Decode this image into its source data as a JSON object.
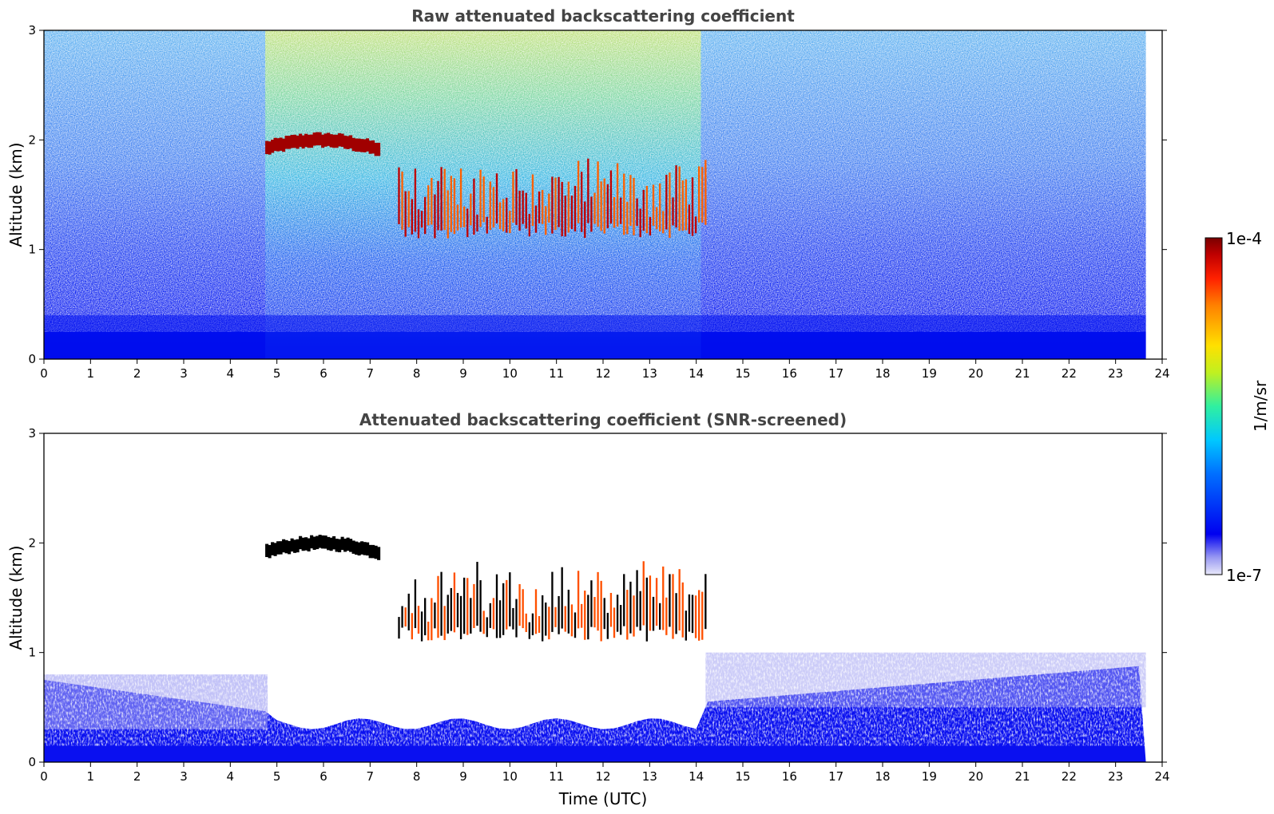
{
  "chart_data": [
    {
      "type": "heatmap",
      "title": "Raw attenuated backscattering coefficient",
      "xlabel": "",
      "ylabel": "Altitude (km)",
      "xlim": [
        0,
        24
      ],
      "ylim": [
        0,
        3
      ],
      "x_ticks": [
        "0",
        "1",
        "2",
        "3",
        "4",
        "5",
        "6",
        "7",
        "8",
        "9",
        "10",
        "11",
        "12",
        "13",
        "14",
        "15",
        "16",
        "17",
        "18",
        "19",
        "20",
        "21",
        "22",
        "23",
        "24"
      ],
      "y_ticks": [
        "0",
        "1",
        "2",
        "3"
      ],
      "data_end_time": 23.65,
      "features": [
        {
          "kind": "cloud_layer",
          "t_start": 4.75,
          "t_end": 7.2,
          "alt_km": 1.9
        },
        {
          "kind": "cloud_field",
          "t_start": 7.6,
          "t_end": 14.2,
          "alt_km": [
            1.1,
            1.8
          ]
        },
        {
          "kind": "elevated_noise",
          "t_start": 4.75,
          "t_end": 14.1
        },
        {
          "kind": "boundary_layer",
          "t_start": 0,
          "t_end": 23.65,
          "alt_km": [
            0,
            0.4
          ]
        }
      ]
    },
    {
      "type": "heatmap",
      "title": "Attenuated backscattering coefficient (SNR-screened)",
      "xlabel": "Time (UTC)",
      "ylabel": "Altitude (km)",
      "xlim": [
        0,
        24
      ],
      "ylim": [
        0,
        3
      ],
      "x_ticks": [
        "0",
        "1",
        "2",
        "3",
        "4",
        "5",
        "6",
        "7",
        "8",
        "9",
        "10",
        "11",
        "12",
        "13",
        "14",
        "15",
        "16",
        "17",
        "18",
        "19",
        "20",
        "21",
        "22",
        "23",
        "24"
      ],
      "y_ticks": [
        "0",
        "1",
        "2",
        "3"
      ],
      "data_end_time": 23.65,
      "features": [
        {
          "kind": "cloud_layer",
          "t_start": 4.75,
          "t_end": 7.2,
          "alt_km": 1.9
        },
        {
          "kind": "cloud_field",
          "t_start": 7.6,
          "t_end": 14.2,
          "alt_km": [
            1.1,
            1.8
          ]
        },
        {
          "kind": "aerosol_layer",
          "t_start": 0,
          "t_end": 23.65,
          "alt_km": [
            0,
            1.0
          ]
        }
      ]
    }
  ],
  "colorbar": {
    "label": "1/m/sr",
    "max_label": "1e-4",
    "min_label": "1e-7",
    "scale": "log",
    "range": [
      1e-07,
      0.0001
    ],
    "colormap": [
      "#e8e8fa",
      "#9a9af2",
      "#0000f0",
      "#0070ff",
      "#00c8ff",
      "#30f0a0",
      "#c0f020",
      "#ffe000",
      "#ff8000",
      "#ff2000",
      "#c00000",
      "#7a0000"
    ]
  }
}
